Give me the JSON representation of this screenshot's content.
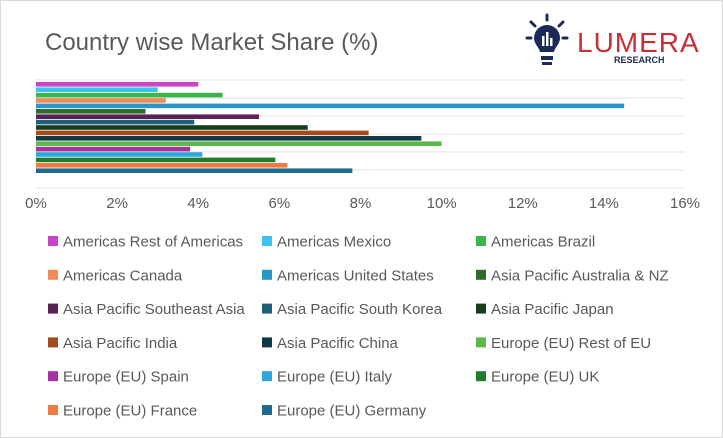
{
  "chart_data": {
    "type": "bar",
    "orientation": "horizontal",
    "title": "Country wise Market Share (%)",
    "xlabel": "",
    "ylabel": "",
    "xlim": [
      0,
      16
    ],
    "x_ticks": [
      "0%",
      "2%",
      "4%",
      "6%",
      "8%",
      "10%",
      "12%",
      "14%",
      "16%"
    ],
    "grid": true,
    "legend_position": "bottom",
    "series": [
      {
        "name": "Americas Rest of Americas",
        "value": 4.0,
        "color": "#c944c6"
      },
      {
        "name": "Americas Mexico",
        "value": 3.0,
        "color": "#3ec4ec"
      },
      {
        "name": "Americas Brazil",
        "value": 4.6,
        "color": "#3bb54a"
      },
      {
        "name": "Americas Canada",
        "value": 3.2,
        "color": "#f08c58"
      },
      {
        "name": "Americas United States",
        "value": 14.5,
        "color": "#2b94c9"
      },
      {
        "name": "Asia Pacific Australia & NZ",
        "value": 2.7,
        "color": "#2e6b2a"
      },
      {
        "name": "Asia Pacific Southeast Asia",
        "value": 5.5,
        "color": "#5b2354"
      },
      {
        "name": "Asia Pacific South Korea",
        "value": 3.9,
        "color": "#1e6078"
      },
      {
        "name": "Asia Pacific Japan",
        "value": 6.7,
        "color": "#183e1c"
      },
      {
        "name": "Asia Pacific India",
        "value": 8.2,
        "color": "#a44a1f"
      },
      {
        "name": "Asia Pacific China",
        "value": 9.5,
        "color": "#0f3a46"
      },
      {
        "name": "Europe (EU) Rest of EU",
        "value": 10.0,
        "color": "#5cb848"
      },
      {
        "name": "Europe (EU) Spain",
        "value": 3.8,
        "color": "#a5329e"
      },
      {
        "name": "Europe (EU) Italy",
        "value": 4.1,
        "color": "#2fa6e0"
      },
      {
        "name": "Europe (EU) UK",
        "value": 5.9,
        "color": "#1f7d2c"
      },
      {
        "name": "Europe (EU) France",
        "value": 6.2,
        "color": "#ee7a45"
      },
      {
        "name": "Europe (EU) Germany",
        "value": 7.8,
        "color": "#1f6a8e"
      }
    ]
  },
  "logo": {
    "name": "LUMERA",
    "subtitle": "RESEARCH",
    "brand_color": "#c62f36",
    "icon": "lightbulb-icon",
    "icon_color": "#1b2a57"
  }
}
